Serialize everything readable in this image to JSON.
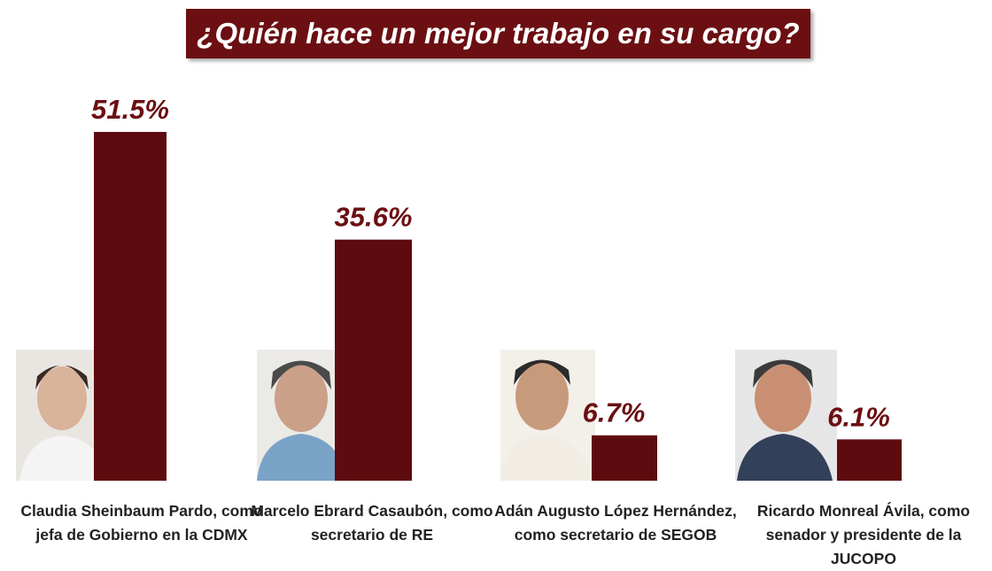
{
  "chart_data": {
    "type": "bar",
    "title": "¿Quién hace un mejor trabajo en su cargo?",
    "categories": [
      "Claudia Sheinbaum Pardo, como jefa de Gobierno en la CDMX",
      "Marcelo Ebrard Casaubón, como secretario de RE",
      "Adán Augusto López Hernández, como secretario de SEGOB",
      "Ricardo Monreal Ávila, como senador y presidente de la JUCOPO"
    ],
    "values": [
      51.5,
      35.6,
      6.7,
      6.1
    ],
    "value_labels": [
      "51.5%",
      "35.6%",
      "6.7%",
      "6.1%"
    ],
    "color": "#5e0b0f"
  }
}
